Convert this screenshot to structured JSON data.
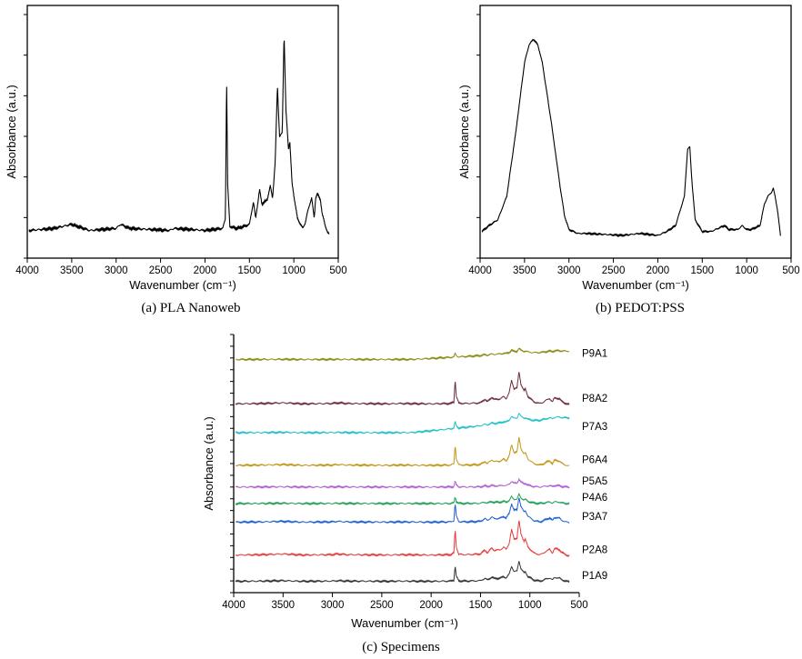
{
  "chart_data": [
    {
      "id": "a",
      "type": "line",
      "title": "",
      "caption": "(a)  PLA Nanoweb",
      "xlabel": "Wavenumber (cm⁻¹)",
      "ylabel": "Absorbance (a.u.)",
      "xlim": [
        4000,
        500
      ],
      "xticks": [
        "4000",
        "3500",
        "3000",
        "2500",
        "2000",
        "1500",
        "1000",
        "500"
      ],
      "ylim": [
        0,
        1
      ],
      "series": [
        {
          "name": "PLA Nanoweb",
          "color": "#000000",
          "x": [
            3980,
            3700,
            3500,
            3300,
            3000,
            2950,
            2850,
            2400,
            2350,
            2000,
            1800,
            1770,
            1757,
            1745,
            1720,
            1650,
            1560,
            1500,
            1455,
            1430,
            1385,
            1360,
            1300,
            1265,
            1240,
            1210,
            1185,
            1160,
            1130,
            1110,
            1090,
            1060,
            1045,
            1020,
            960,
            900,
            870,
            840,
            800,
            770,
            755,
            735,
            700,
            680,
            650,
            620,
            600
          ],
          "y": [
            0.02,
            0.03,
            0.05,
            0.02,
            0.03,
            0.05,
            0.03,
            0.02,
            0.03,
            0.02,
            0.03,
            0.08,
            0.77,
            0.25,
            0.04,
            0.03,
            0.04,
            0.05,
            0.16,
            0.08,
            0.22,
            0.15,
            0.17,
            0.24,
            0.18,
            0.35,
            0.73,
            0.48,
            0.5,
            0.99,
            0.62,
            0.42,
            0.46,
            0.25,
            0.08,
            0.03,
            0.06,
            0.12,
            0.18,
            0.08,
            0.18,
            0.2,
            0.17,
            0.1,
            0.05,
            0.01,
            0.0
          ]
        }
      ]
    },
    {
      "id": "b",
      "type": "line",
      "title": "",
      "caption": "(b) PEDOT:PSS",
      "xlabel": "Wavenumber (cm⁻¹)",
      "ylabel": "Absorbance (a.u.)",
      "xlim": [
        4000,
        500
      ],
      "xticks": [
        "4000",
        "3500",
        "3000",
        "2500",
        "2000",
        "1500",
        "1000",
        "500"
      ],
      "ylim": [
        0,
        1
      ],
      "series": [
        {
          "name": "PEDOT:PSS",
          "color": "#000000",
          "x": [
            3980,
            3900,
            3800,
            3700,
            3600,
            3500,
            3450,
            3400,
            3350,
            3300,
            3200,
            3100,
            3050,
            3000,
            2900,
            2800,
            2400,
            2200,
            2000,
            1900,
            1800,
            1700,
            1665,
            1640,
            1620,
            1580,
            1500,
            1400,
            1300,
            1250,
            1200,
            1100,
            1050,
            1000,
            950,
            900,
            850,
            800,
            760,
            720,
            700,
            680,
            650,
            620
          ],
          "y": [
            0.02,
            0.05,
            0.08,
            0.2,
            0.52,
            0.88,
            0.97,
            1.0,
            0.97,
            0.88,
            0.58,
            0.25,
            0.1,
            0.03,
            0.01,
            0.01,
            0.0,
            0.01,
            0.0,
            0.02,
            0.05,
            0.2,
            0.44,
            0.45,
            0.3,
            0.08,
            0.02,
            0.02,
            0.04,
            0.05,
            0.03,
            0.03,
            0.05,
            0.03,
            0.03,
            0.04,
            0.05,
            0.16,
            0.2,
            0.22,
            0.24,
            0.2,
            0.12,
            0.0
          ]
        }
      ]
    },
    {
      "id": "c",
      "type": "line",
      "title": "",
      "caption": "(c) Specimens",
      "xlabel": "Wavenumber (cm⁻¹)",
      "ylabel": "Absorbance (a.u.)",
      "xlim": [
        4000,
        500
      ],
      "xticks": [
        "4000",
        "3500",
        "3000",
        "2500",
        "2000",
        "1500",
        "1000",
        "500"
      ],
      "ylim": [
        0,
        1
      ],
      "series": [
        {
          "name": "P9A1",
          "color": "#8b8b12",
          "offset": 0.94,
          "scale": 0.045
        },
        {
          "name": "P8A2",
          "color": "#6b2a3a",
          "offset": 0.75,
          "scale": 0.14
        },
        {
          "name": "P7A3",
          "color": "#1fbfc7",
          "offset": 0.63,
          "scale": 0.08
        },
        {
          "name": "P6A4",
          "color": "#c29613",
          "offset": 0.49,
          "scale": 0.12
        },
        {
          "name": "P5A5",
          "color": "#b05fd3",
          "offset": 0.4,
          "scale": 0.035
        },
        {
          "name": "P4A6",
          "color": "#1e9e55",
          "offset": 0.33,
          "scale": 0.04
        },
        {
          "name": "P3A7",
          "color": "#1d5fd0",
          "offset": 0.25,
          "scale": 0.11
        },
        {
          "name": "P2A8",
          "color": "#e33b3b",
          "offset": 0.11,
          "scale": 0.15
        },
        {
          "name": "P1A9",
          "color": "#333333",
          "offset": 0.0,
          "scale": 0.09
        }
      ]
    }
  ]
}
